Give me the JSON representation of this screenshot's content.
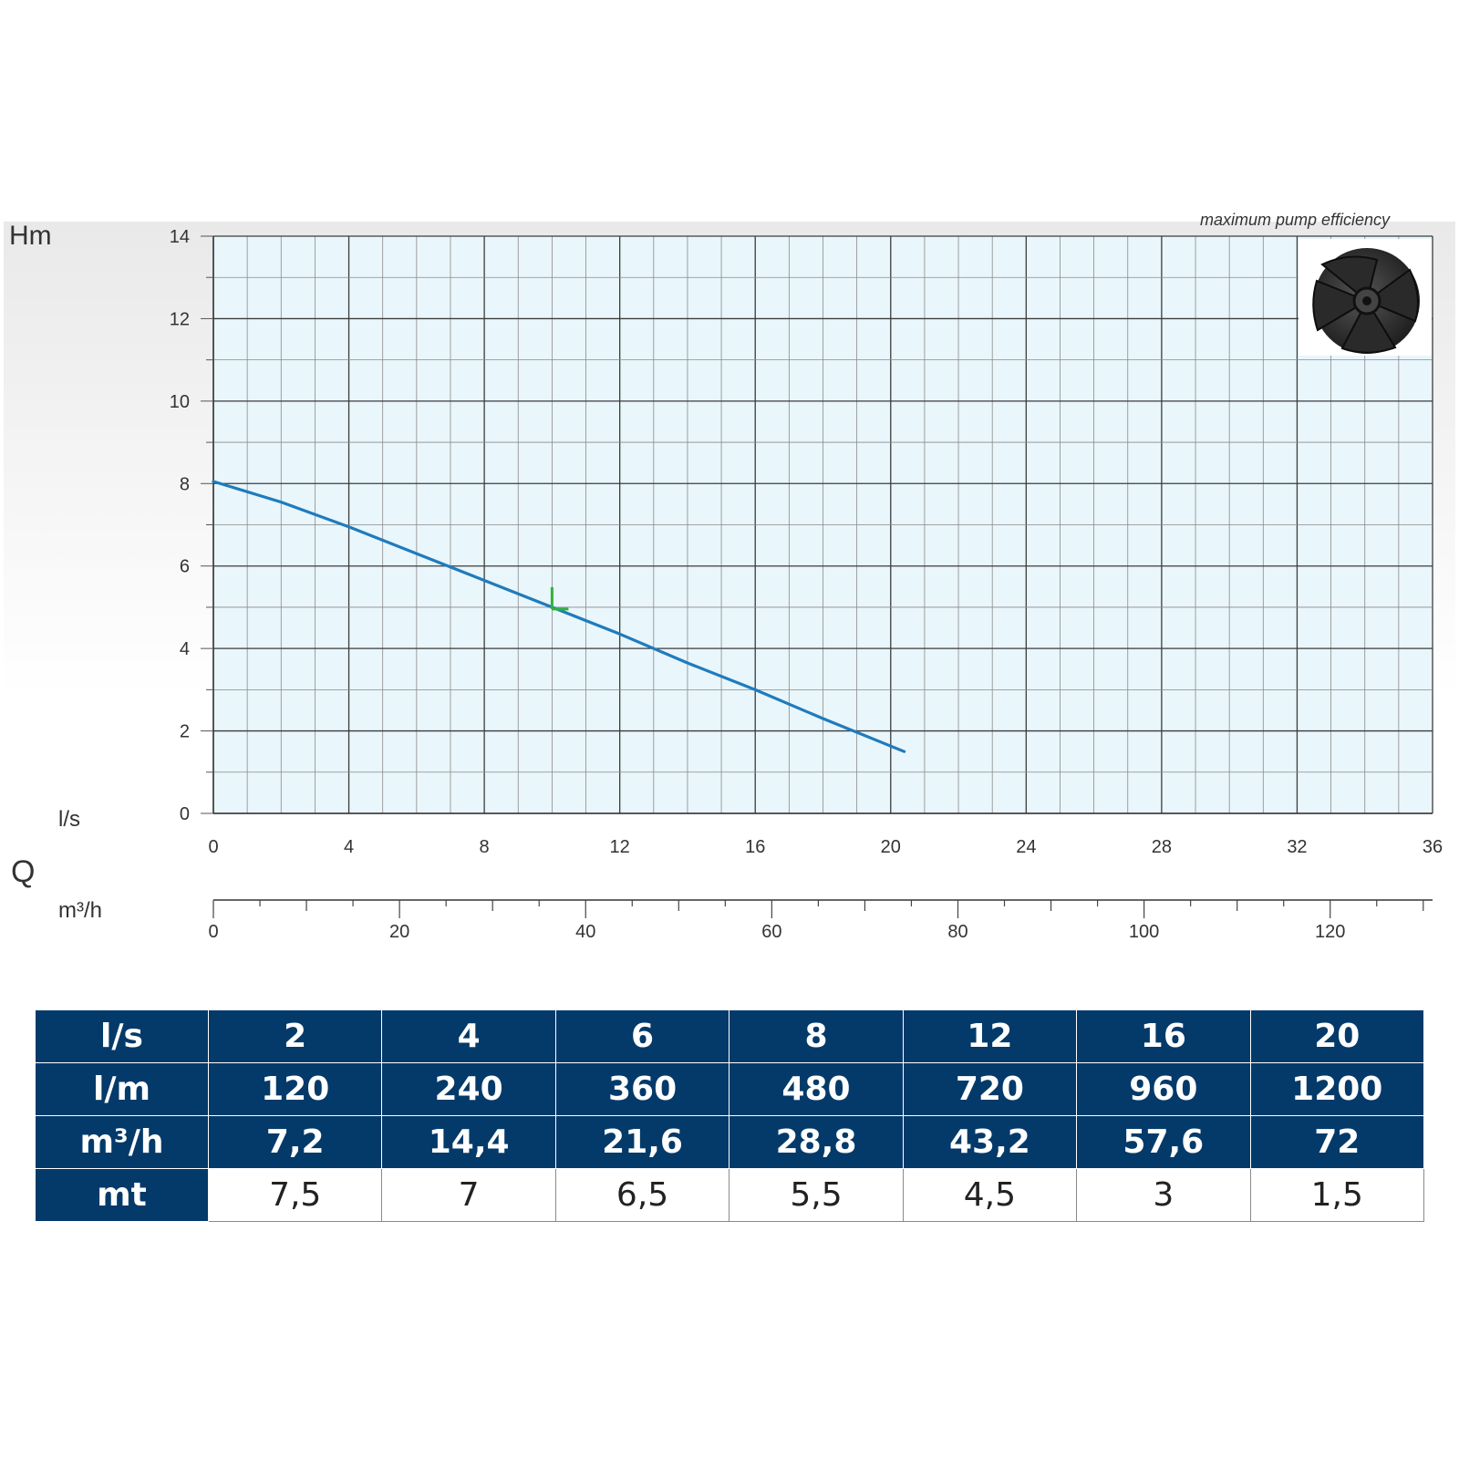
{
  "chart_data": {
    "type": "line",
    "y_axis": {
      "label": "Hm",
      "ticks": [
        "0",
        "2",
        "4",
        "6",
        "8",
        "10",
        "12",
        "14"
      ],
      "range": [
        0,
        14
      ]
    },
    "x_axis_primary": {
      "unit": "l/s",
      "ticks": [
        "0",
        "4",
        "8",
        "12",
        "16",
        "20",
        "24",
        "28",
        "32",
        "36"
      ],
      "range": [
        0,
        36
      ]
    },
    "x_axis_secondary": {
      "unit": "m³/h",
      "ticks": [
        "0",
        "20",
        "40",
        "60",
        "80",
        "100",
        "120"
      ],
      "range": [
        0,
        131
      ]
    },
    "x_axis_symbol": "Q",
    "grid": true,
    "series": [
      {
        "color": "#1f7bbd",
        "x": [
          0,
          2,
          4,
          6,
          8,
          10,
          12,
          14,
          16,
          18,
          20.4
        ],
        "y": [
          8.05,
          7.55,
          6.95,
          6.3,
          5.65,
          5.0,
          4.35,
          3.65,
          3.0,
          2.3,
          1.5
        ]
      }
    ],
    "best_efficiency_point": {
      "x": 10,
      "y": 5.0,
      "color": "#2fb33a"
    },
    "faded_caption": "maximum pump efficiency",
    "plot_background": "#e9f6fb",
    "grid_major_color": "#3c3c3c",
    "grid_minor_color": "#8a8a8a"
  },
  "table": {
    "rows": [
      {
        "header": "l/s",
        "cells": [
          "2",
          "4",
          "6",
          "8",
          "12",
          "16",
          "20"
        ]
      },
      {
        "header": "l/m",
        "cells": [
          "120",
          "240",
          "360",
          "480",
          "720",
          "960",
          "1200"
        ]
      },
      {
        "header": "m³/h",
        "cells": [
          "7,2",
          "14,4",
          "21,6",
          "28,8",
          "43,2",
          "57,6",
          "72"
        ]
      },
      {
        "header": "mt",
        "cells": [
          "7,5",
          "7",
          "6,5",
          "5,5",
          "4,5",
          "3",
          "1,5"
        ]
      }
    ],
    "header_bg": "#033a6a"
  },
  "icons": {
    "impeller": "impeller-icon"
  }
}
